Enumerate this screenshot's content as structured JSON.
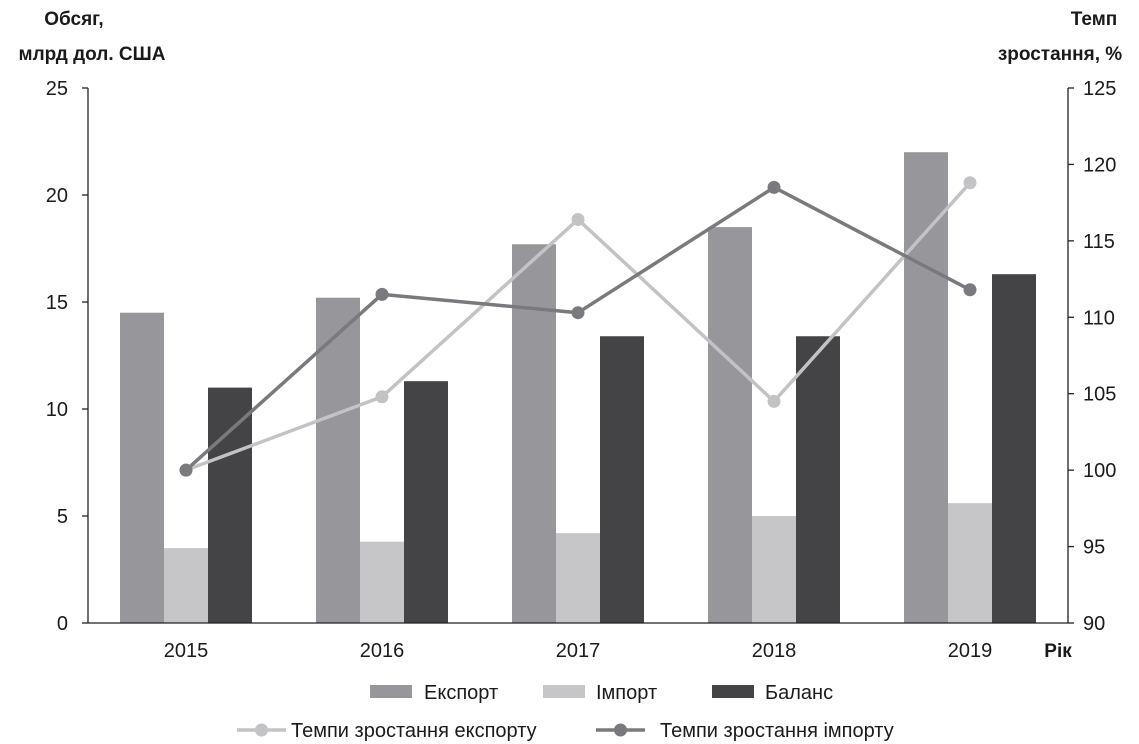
{
  "chart_data": {
    "type": "bar",
    "categories": [
      "2015",
      "2016",
      "2017",
      "2018",
      "2019"
    ],
    "bar_series": [
      {
        "name": "Експорт",
        "values": [
          14.5,
          15.2,
          17.7,
          18.5,
          22.0
        ],
        "color": "#97979b"
      },
      {
        "name": "Імпорт",
        "values": [
          3.5,
          3.8,
          4.2,
          5.0,
          5.6
        ],
        "color": "#c6c6c8"
      },
      {
        "name": "Баланс",
        "values": [
          11.0,
          11.3,
          13.4,
          13.4,
          16.3
        ],
        "color": "#444446"
      }
    ],
    "line_series": [
      {
        "name": "Темпи зростання експорту",
        "values": [
          100.0,
          104.8,
          116.4,
          104.5,
          118.8
        ],
        "color": "#c3c3c5",
        "axis": "right"
      },
      {
        "name": "Темпи зростання імпорту",
        "values": [
          100.0,
          111.5,
          110.3,
          118.5,
          111.8
        ],
        "color": "#7a7a7e",
        "axis": "right"
      }
    ],
    "ylabel_left": [
      "Обсяг,",
      "млрд дол. США"
    ],
    "ylabel_right": [
      "Темп",
      "зростання, %"
    ],
    "xlabel": "Рік",
    "ylim_left": [
      0,
      25
    ],
    "yticks_left": [
      "0",
      "5",
      "10",
      "15",
      "20",
      "25"
    ],
    "ylim_right": [
      90,
      125
    ],
    "yticks_right": [
      "90",
      "95",
      "100",
      "105",
      "110",
      "115",
      "120",
      "125"
    ],
    "grid": false,
    "legend_position": "bottom"
  }
}
